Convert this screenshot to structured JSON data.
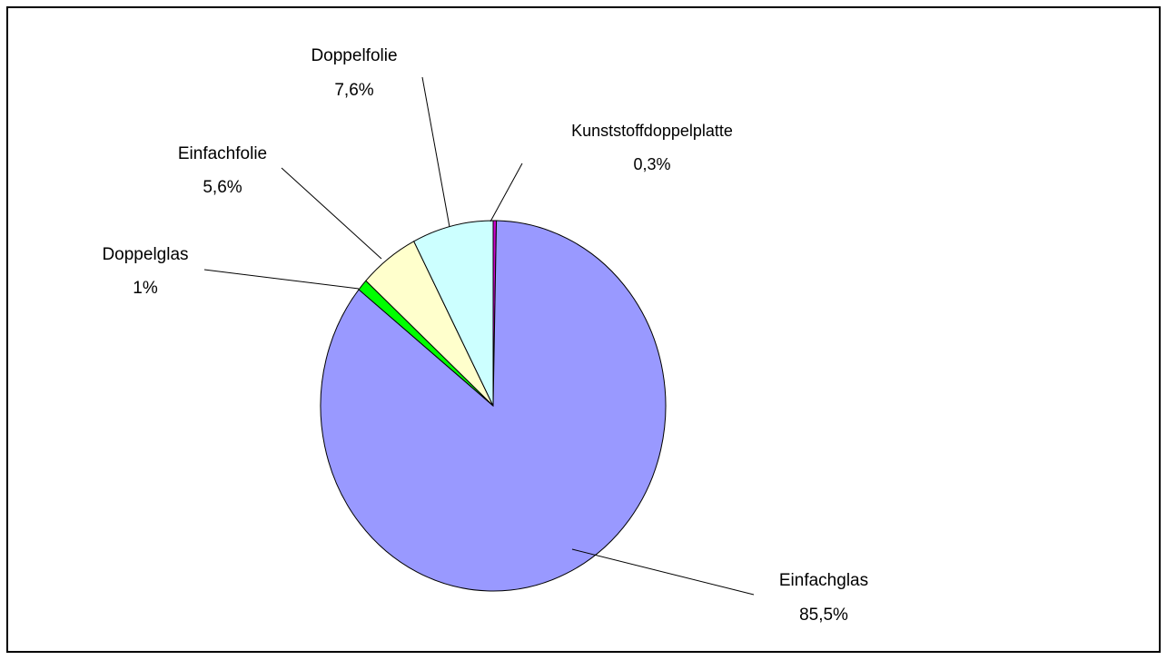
{
  "chart_data": {
    "type": "pie",
    "categories": [
      "Kunststoffdoppelplatte",
      "Einfachglas",
      "Doppelglas",
      "Einfachfolie",
      "Doppelfolie"
    ],
    "values": [
      0.3,
      85.5,
      1,
      5.6,
      7.6
    ],
    "value_labels": [
      "0,3%",
      "85,5%",
      "1%",
      "5,6%",
      "7,6%"
    ],
    "colors": [
      "#cc00cc",
      "#9999ff",
      "#00ff00",
      "#ffffcc",
      "#ccffff"
    ]
  }
}
